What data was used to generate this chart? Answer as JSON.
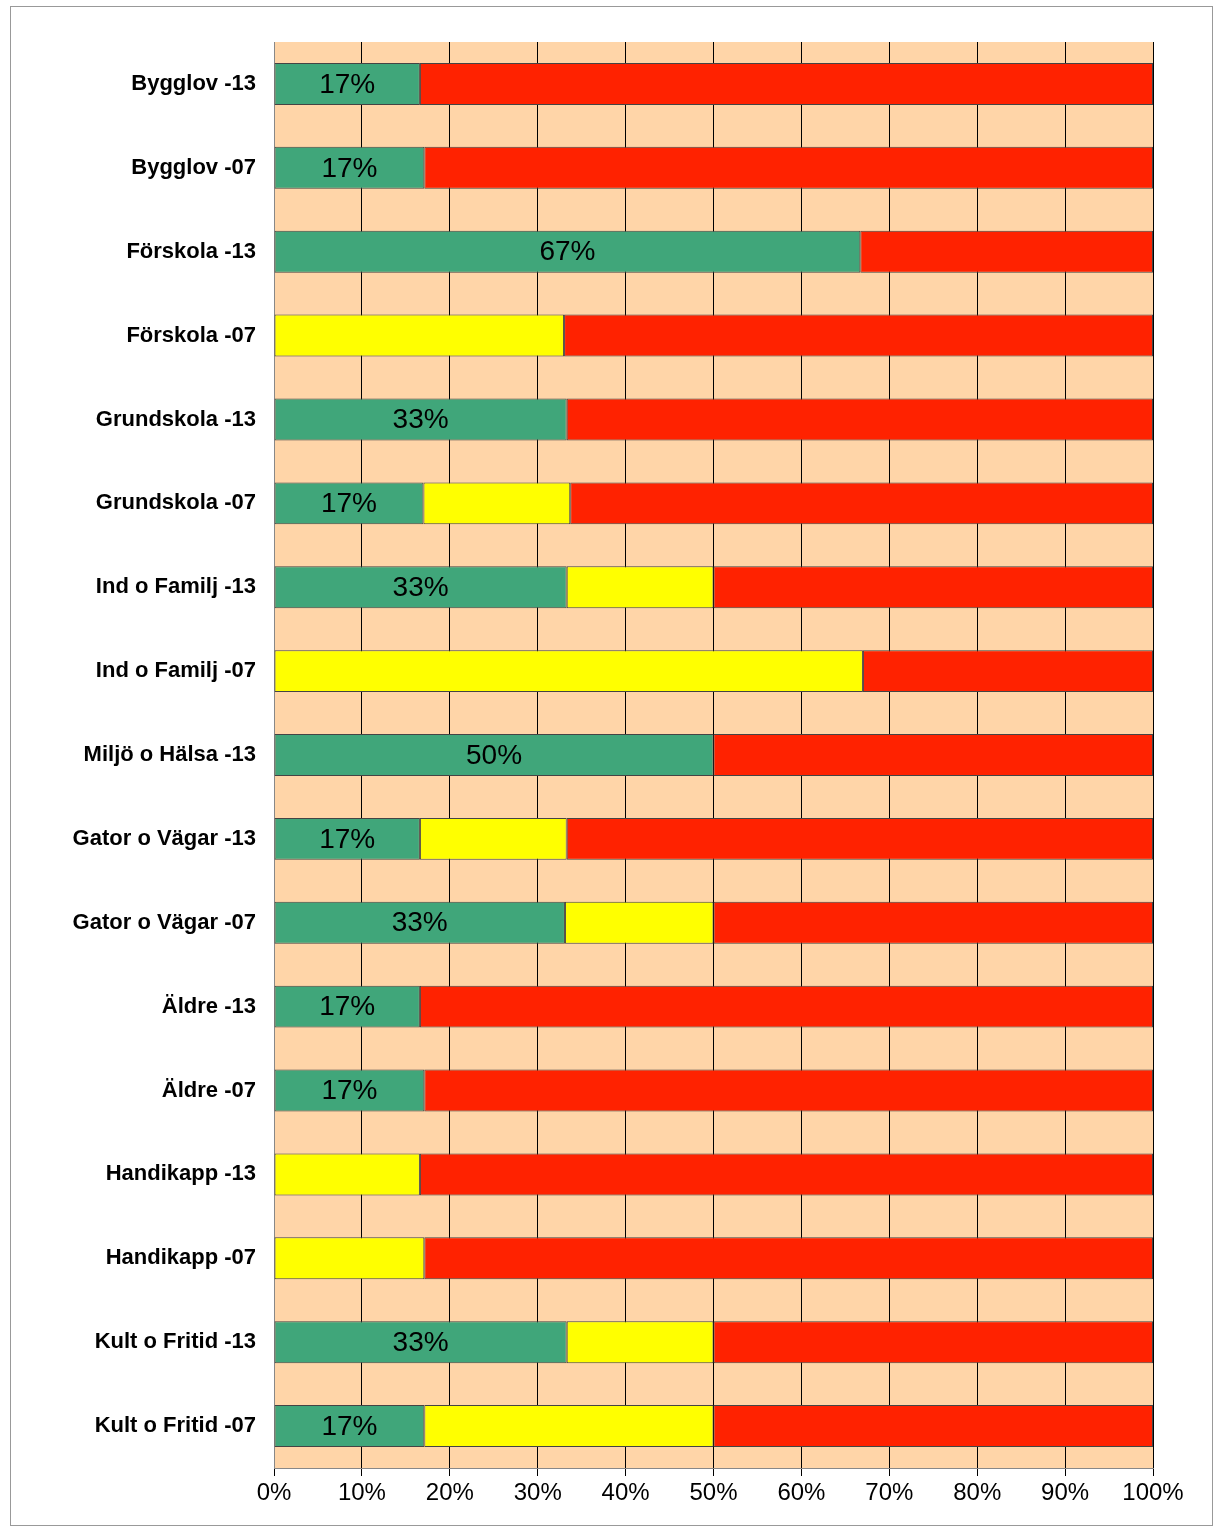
{
  "chart_data": {
    "type": "bar",
    "orientation": "horizontal",
    "stacked": true,
    "grid": "x",
    "legend": false,
    "categories": [
      "Bygglov -13",
      "Bygglov -07",
      "Förskola -13",
      "Förskola -07",
      "Grundskola -13",
      "Grundskola -07",
      "Ind o Familj -13",
      "Ind o Familj -07",
      "Miljö o Hälsa -13",
      "Gator o Vägar -13",
      "Gator o Vägar -07",
      "Äldre -13",
      "Äldre -07",
      "Handikapp -13",
      "Handikapp -07",
      "Kult o Fritid -13",
      "Kult o Fritid -07"
    ],
    "xlim": [
      0,
      100
    ],
    "xticks": [
      {
        "value": 0,
        "label": "0%"
      },
      {
        "value": 10,
        "label": "10%"
      },
      {
        "value": 20,
        "label": "20%"
      },
      {
        "value": 30,
        "label": "30%"
      },
      {
        "value": 40,
        "label": "40%"
      },
      {
        "value": 50,
        "label": "50%"
      },
      {
        "value": 60,
        "label": "60%"
      },
      {
        "value": 70,
        "label": "70%"
      },
      {
        "value": 80,
        "label": "80%"
      },
      {
        "value": 90,
        "label": "90%"
      },
      {
        "value": 100,
        "label": "100%"
      }
    ],
    "series": [
      {
        "color": "#40a67a",
        "values": [
          16.6,
          17.1,
          66.7,
          null,
          33.3,
          17.0,
          33.3,
          null,
          50,
          16.6,
          33.1,
          16.6,
          17.1,
          null,
          null,
          33.3,
          17.1
        ],
        "value_labels": [
          "17%",
          "17%",
          "67%",
          null,
          "33%",
          "17%",
          "33%",
          null,
          "50%",
          "17%",
          "33%",
          "17%",
          "17%",
          null,
          null,
          "33%",
          "17%"
        ]
      },
      {
        "color": "#ffff00",
        "values": [
          null,
          null,
          null,
          33.0,
          null,
          16.7,
          16.7,
          67.0,
          null,
          16.7,
          16.9,
          null,
          null,
          16.6,
          17.1,
          16.7,
          32.9
        ]
      },
      {
        "color": "#ff2200",
        "values": [
          83.4,
          82.9,
          33.3,
          67.0,
          66.7,
          66.3,
          50,
          33.0,
          50,
          66.7,
          50,
          83.4,
          82.9,
          83.4,
          82.9,
          50,
          50
        ]
      }
    ]
  }
}
